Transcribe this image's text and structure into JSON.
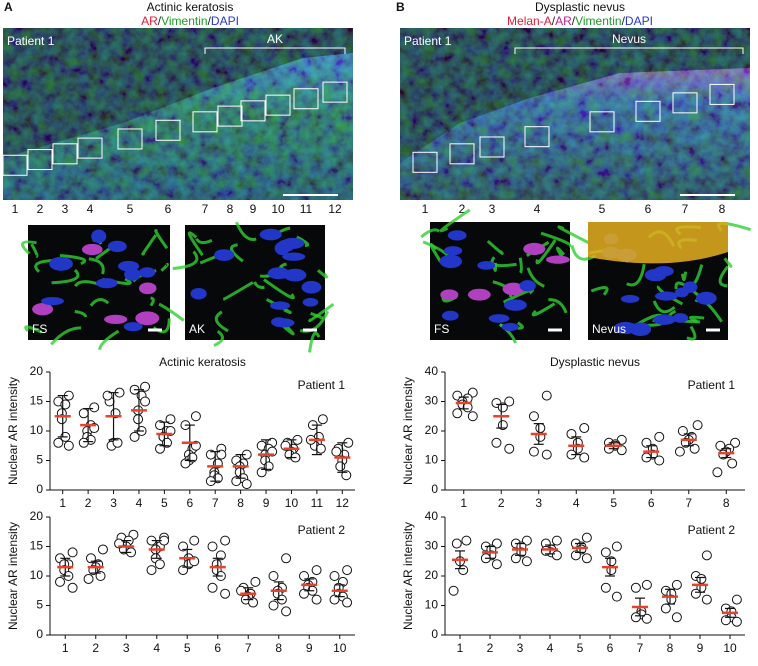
{
  "panels": [
    {
      "letter": "A",
      "title": "Actinic keratosis",
      "stains": [
        {
          "text": "AR",
          "color": "#e01e37"
        },
        {
          "text": "/",
          "color": "#222"
        },
        {
          "text": "Vimentin",
          "color": "#1f9a2a"
        },
        {
          "text": "/",
          "color": "#222"
        },
        {
          "text": "DAPI",
          "color": "#2637c9"
        }
      ],
      "image": {
        "patient": "Patient 1",
        "region": "AK",
        "regions": [
          "1",
          "2",
          "3",
          "4",
          "5",
          "6",
          "7",
          "8",
          "9",
          "10",
          "11",
          "12"
        ]
      },
      "zooms": [
        "FS",
        "AK"
      ]
    },
    {
      "letter": "B",
      "title": "Dysplastic nevus",
      "stains": [
        {
          "text": "Melan-A",
          "color": "#e01e37"
        },
        {
          "text": "/",
          "color": "#222"
        },
        {
          "text": "AR",
          "color": "#c0209a"
        },
        {
          "text": "/",
          "color": "#222"
        },
        {
          "text": "Vimentin",
          "color": "#1f9a2a"
        },
        {
          "text": "/",
          "color": "#222"
        },
        {
          "text": "DAPI",
          "color": "#2637c9"
        }
      ],
      "image": {
        "patient": "Patient 1",
        "region": "Nevus",
        "regions": [
          "1",
          "2",
          "3",
          "4",
          "5",
          "6",
          "7",
          "8"
        ]
      },
      "zooms": [
        "FS",
        "Nevus"
      ]
    }
  ],
  "chart_data": [
    {
      "type": "scatter",
      "title": "Actinic keratosis",
      "label": "Patient 1",
      "ylabel": "Nuclear AR intensity",
      "categories": [
        "1",
        "2",
        "3",
        "4",
        "5",
        "6",
        "7",
        "8",
        "9",
        "10",
        "11",
        "12"
      ],
      "mean": [
        12.5,
        11,
        12.5,
        13.5,
        9.5,
        8,
        4,
        4,
        6,
        7,
        8.5,
        5.5
      ],
      "error": [
        3.5,
        2.8,
        4,
        3.5,
        2,
        3,
        2.5,
        2,
        2.5,
        1.5,
        2.5,
        2.5
      ],
      "points": [
        [
          16,
          15,
          14.5,
          13,
          12,
          9,
          8,
          7.5
        ],
        [
          14,
          13,
          11,
          10,
          9,
          8.5,
          8,
          10.5
        ],
        [
          16.5,
          15,
          13,
          8,
          7.5,
          8,
          16
        ],
        [
          17.5,
          17,
          16,
          13.5,
          12,
          10,
          9,
          15
        ],
        [
          12,
          11,
          10,
          9,
          9,
          8,
          7,
          10
        ],
        [
          12.5,
          11,
          7,
          6,
          5,
          5.5,
          4.5,
          7.5
        ],
        [
          7,
          6,
          4.5,
          3,
          2.5,
          2,
          1.5,
          6
        ],
        [
          6,
          5,
          4.5,
          4,
          3,
          2,
          1.5,
          1
        ],
        [
          8,
          7.5,
          7,
          6,
          5,
          4,
          3,
          6.5
        ],
        [
          8.5,
          8,
          7,
          6.5,
          6,
          5.5,
          7.5
        ],
        [
          12,
          11,
          9,
          8,
          7.5,
          7,
          8.5
        ],
        [
          8,
          7,
          6,
          5,
          4,
          2.5,
          6.5
        ]
      ],
      "ylim": [
        0,
        20
      ],
      "yticks": [
        0,
        5,
        10,
        15,
        20
      ],
      "mean_color": "#e8412c",
      "point_color": "#111"
    },
    {
      "type": "scatter",
      "label": "Patient 2",
      "ylabel": "Nuclear AR intensity",
      "categories": [
        "1",
        "2",
        "3",
        "4",
        "5",
        "6",
        "7",
        "8",
        "9",
        "10"
      ],
      "mean": [
        11.5,
        11.5,
        15,
        14.5,
        13,
        11.5,
        7,
        7.5,
        8.5,
        7.5
      ],
      "error": [
        1.5,
        1,
        1,
        1.5,
        1.5,
        1.5,
        1,
        1.5,
        1,
        1
      ],
      "points": [
        [
          14,
          13,
          12,
          12,
          11,
          10,
          9,
          8
        ],
        [
          14.5,
          13,
          12,
          11.5,
          11,
          10,
          9.5
        ],
        [
          17,
          16.5,
          16,
          15,
          14.5,
          14,
          15.5
        ],
        [
          16.5,
          16,
          15,
          14.5,
          13,
          12,
          11,
          16
        ],
        [
          16,
          15,
          13,
          12,
          11,
          12.5
        ],
        [
          16,
          15,
          13.5,
          12,
          11,
          10,
          8,
          7
        ],
        [
          9,
          8,
          7,
          6.5,
          6,
          5.5,
          7.5
        ],
        [
          13,
          10,
          8,
          7.5,
          7,
          6,
          5,
          4
        ],
        [
          11,
          10,
          9,
          8.5,
          8,
          7.5,
          7,
          6
        ],
        [
          11,
          10,
          9,
          8,
          7,
          6.5,
          6,
          5.5
        ]
      ],
      "ylim": [
        0,
        20
      ],
      "yticks": [
        0,
        5,
        10,
        15,
        20
      ],
      "mean_color": "#e8412c",
      "point_color": "#111"
    },
    {
      "type": "scatter",
      "title": "Dysplastic nevus",
      "label": "Patient 1",
      "ylabel": "Nuclear AR intensity",
      "categories": [
        "1",
        "2",
        "3",
        "4",
        "5",
        "6",
        "7",
        "8"
      ],
      "mean": [
        29.5,
        25,
        19,
        15,
        15,
        13,
        17,
        12.5
      ],
      "error": [
        2,
        4,
        3.5,
        3,
        1,
        2,
        2,
        1.5
      ],
      "points": [
        [
          33,
          32,
          31,
          30,
          29,
          28,
          26,
          25
        ],
        [
          30,
          29.5,
          28,
          22,
          16,
          14
        ],
        [
          32,
          25,
          21,
          18,
          13,
          12
        ],
        [
          21,
          19,
          16,
          14,
          12,
          11
        ],
        [
          17,
          16,
          15.5,
          15,
          14,
          13.5
        ],
        [
          18,
          16,
          14,
          12,
          11,
          10
        ],
        [
          22,
          20,
          18,
          17,
          16,
          14,
          13
        ],
        [
          16,
          15,
          14,
          13,
          12,
          9,
          6
        ]
      ],
      "ylim": [
        0,
        40
      ],
      "yticks": [
        0,
        10,
        20,
        30,
        40
      ],
      "mean_color": "#e8412c",
      "point_color": "#111"
    },
    {
      "type": "scatter",
      "label": "Patient 2",
      "ylabel": "Nuclear AR intensity",
      "categories": [
        "1",
        "2",
        "3",
        "4",
        "5",
        "6",
        "7",
        "8",
        "9",
        "10"
      ],
      "mean": [
        25.5,
        28,
        29,
        29,
        29.5,
        23,
        9.5,
        13,
        17,
        7.5
      ],
      "error": [
        3,
        2,
        2,
        1.5,
        1.5,
        3,
        3,
        2.5,
        2.5,
        1.5
      ],
      "points": [
        [
          32,
          31,
          25,
          22,
          15
        ],
        [
          31,
          30,
          29,
          27,
          26,
          24
        ],
        [
          32,
          31,
          30,
          28,
          26,
          25
        ],
        [
          32,
          31,
          29,
          28,
          28.5,
          27
        ],
        [
          33,
          31,
          30,
          29,
          27,
          26
        ],
        [
          30,
          28,
          25,
          22,
          16,
          13
        ],
        [
          17,
          16,
          8,
          7,
          6,
          5.5
        ],
        [
          17,
          15,
          14,
          12,
          9,
          6
        ],
        [
          27,
          20,
          19,
          16,
          14,
          12
        ],
        [
          12,
          9,
          8,
          6,
          5,
          4.5
        ]
      ],
      "ylim": [
        0,
        40
      ],
      "yticks": [
        0,
        10,
        20,
        30,
        40
      ],
      "mean_color": "#e8412c",
      "point_color": "#111"
    }
  ]
}
